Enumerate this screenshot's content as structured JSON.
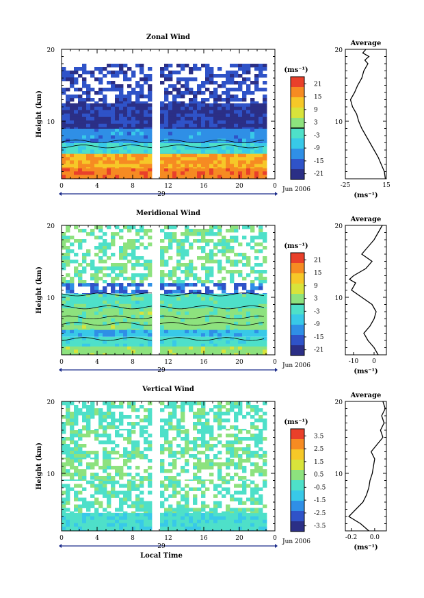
{
  "chart_data": [
    {
      "type": "heatmap",
      "title": "Zonal Wind",
      "ylabel": "Height (km)",
      "unit_label": "(ms⁻¹)",
      "x_ticks": [
        "0",
        "4",
        "8",
        "12",
        "16",
        "20",
        "0"
      ],
      "x_range": [
        0,
        24
      ],
      "y_range": [
        2,
        20
      ],
      "y_ticks": [
        "10",
        "20"
      ],
      "day_label": "29",
      "month_label": "Jun 2006",
      "data_gap_local_time": [
        10.2,
        10.8
      ],
      "data_end_local_time": 22.8,
      "colorbar": {
        "ticks": [
          "21",
          "15",
          "9",
          "3",
          "-3",
          "-9",
          "-15",
          "-21"
        ],
        "range": [
          -24,
          24
        ],
        "zero_line": true
      },
      "layers": [
        {
          "y": [
            2,
            3.5
          ],
          "value": 18
        },
        {
          "y": [
            3.5,
            5.5
          ],
          "value": 15
        },
        {
          "y": [
            5.5,
            7
          ],
          "value": -4
        },
        {
          "y": [
            7,
            9
          ],
          "value": -12
        },
        {
          "y": [
            9,
            12.5
          ],
          "value": -20
        },
        {
          "y": [
            12.5,
            18
          ],
          "value": -18,
          "sparse": true
        }
      ],
      "contour_heights_km": [
        6.5,
        7.2
      ],
      "profile": {
        "title": "Average",
        "xlabel": "(ms⁻¹)",
        "x_ticks": [
          "-25",
          "15"
        ],
        "x_range": [
          -25,
          15
        ],
        "y": [
          2,
          3,
          4,
          5,
          6,
          7,
          8,
          9,
          10,
          11,
          12,
          13,
          14,
          15,
          16,
          17,
          18,
          18.5,
          19,
          19.5,
          20
        ],
        "x": [
          14,
          13,
          10,
          7,
          3,
          -1,
          -5,
          -9,
          -12,
          -14,
          -18,
          -20,
          -16,
          -13,
          -9,
          -7,
          -3,
          -6,
          -2,
          -8,
          -5
        ]
      }
    },
    {
      "type": "heatmap",
      "title": "Meridional Wind",
      "ylabel": "Height (km)",
      "unit_label": "(ms⁻¹)",
      "x_ticks": [
        "0",
        "4",
        "8",
        "12",
        "16",
        "20",
        "0"
      ],
      "x_range": [
        0,
        24
      ],
      "y_range": [
        2,
        20
      ],
      "y_ticks": [
        "10",
        "20"
      ],
      "day_label": "29",
      "month_label": "Jun 2006",
      "data_gap_local_time": [
        10.2,
        10.8
      ],
      "data_end_local_time": 22.8,
      "colorbar": {
        "ticks": [
          "21",
          "15",
          "9",
          "3",
          "-3",
          "-9",
          "-15",
          "-21"
        ],
        "range": [
          -24,
          24
        ],
        "zero_line": true
      },
      "layers": [
        {
          "y": [
            2,
            3.2
          ],
          "value": 3
        },
        {
          "y": [
            3.2,
            4.5
          ],
          "value": -3
        },
        {
          "y": [
            4.5,
            5.5
          ],
          "value": -9
        },
        {
          "y": [
            5.5,
            8.5
          ],
          "value": 2
        },
        {
          "y": [
            8.5,
            10.5
          ],
          "value": -2
        },
        {
          "y": [
            10.5,
            12
          ],
          "value": -15,
          "sparse": true
        },
        {
          "y": [
            12,
            20
          ],
          "value": 0,
          "sparse": true
        }
      ],
      "contour_heights_km": [
        4.2,
        6.3,
        7.2,
        8.6,
        10.4
      ],
      "profile": {
        "title": "Average",
        "xlabel": "(ms⁻¹)",
        "x_ticks": [
          "-10",
          "0"
        ],
        "x_range": [
          -14,
          6
        ],
        "y": [
          2,
          3,
          4,
          5,
          6,
          7,
          8,
          9,
          10,
          11,
          12,
          12.5,
          13,
          14,
          15,
          16,
          17,
          18,
          19,
          20
        ],
        "x": [
          2,
          0,
          -3,
          -5,
          -2,
          0,
          1,
          -1,
          -6,
          -11,
          -9,
          -12,
          -10,
          -4,
          -1,
          -6,
          -3,
          0,
          2,
          4
        ]
      }
    },
    {
      "type": "heatmap",
      "title": "Vertical Wind",
      "xlabel": "Local Time",
      "ylabel": "Height (km)",
      "unit_label": "(ms⁻¹)",
      "x_ticks": [
        "0",
        "4",
        "8",
        "12",
        "16",
        "20",
        "0"
      ],
      "x_range": [
        0,
        24
      ],
      "y_range": [
        2,
        20
      ],
      "y_ticks": [
        "10",
        "20"
      ],
      "day_label": "29",
      "month_label": "Jun 2006",
      "data_gap_local_time": [
        10.2,
        10.8
      ],
      "data_end_local_time": 22.8,
      "colorbar": {
        "ticks": [
          "3.5",
          "2.5",
          "1.5",
          "0.5",
          "-0.5",
          "-1.5",
          "-2.5",
          "-3.5"
        ],
        "range": [
          -4,
          4
        ],
        "zero_line": false
      },
      "layers": [
        {
          "y": [
            2,
            4.5
          ],
          "value": -0.6
        },
        {
          "y": [
            4.5,
            9
          ],
          "value": -0.2,
          "sparse": true
        },
        {
          "y": [
            9,
            12
          ],
          "value": 0.1,
          "sparse": true
        },
        {
          "y": [
            12,
            16
          ],
          "value": -0.1,
          "sparse": true
        },
        {
          "y": [
            16,
            20
          ],
          "value": -0.2,
          "sparse": true
        }
      ],
      "contour_heights_km": [],
      "profile": {
        "title": "Average",
        "xlabel": "(ms⁻¹)",
        "x_ticks": [
          "-0.2",
          "0.0"
        ],
        "x_range": [
          -0.25,
          0.1
        ],
        "y": [
          2,
          3,
          4,
          5,
          6,
          7,
          8,
          9,
          10,
          11,
          12,
          13,
          14,
          15,
          16,
          17,
          18,
          19,
          20
        ],
        "x": [
          -0.05,
          -0.12,
          -0.22,
          -0.16,
          -0.1,
          -0.07,
          -0.05,
          -0.04,
          -0.02,
          -0.01,
          0.0,
          -0.03,
          0.02,
          0.07,
          0.05,
          0.08,
          0.06,
          0.09,
          0.07
        ]
      }
    }
  ]
}
